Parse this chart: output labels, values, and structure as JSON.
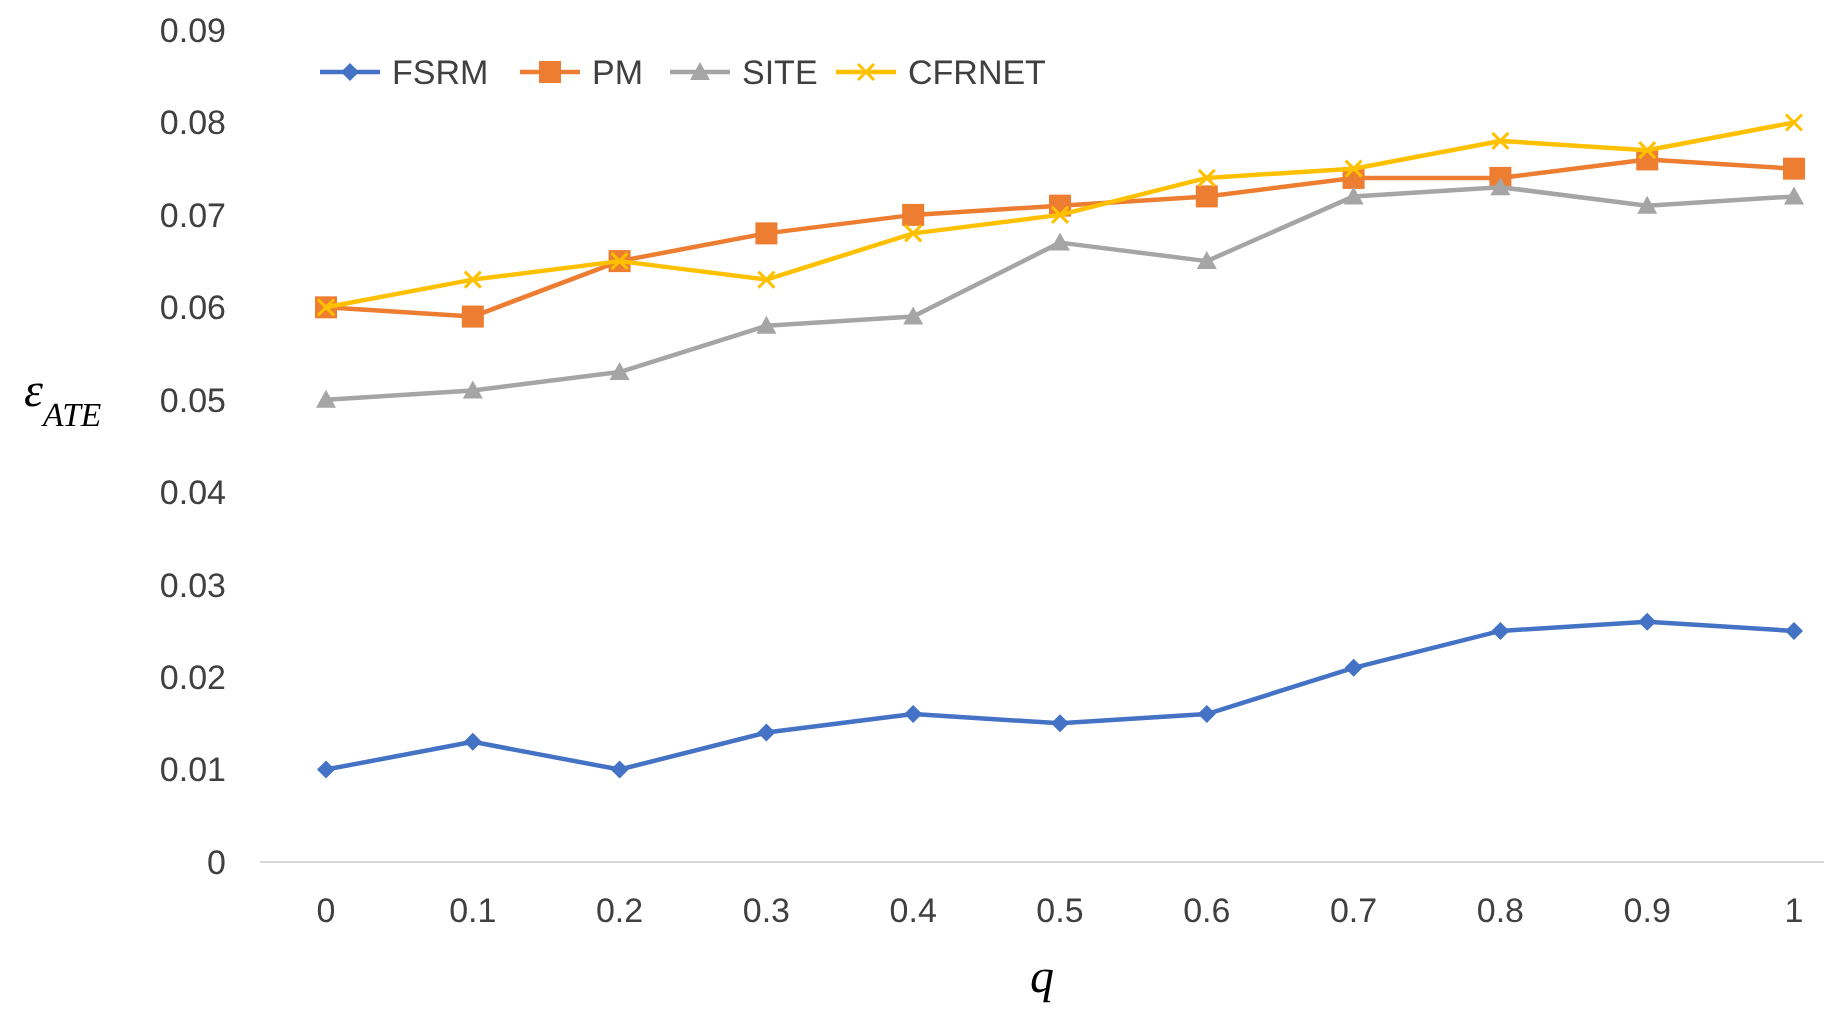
{
  "chart_data": {
    "type": "line",
    "xlabel": "q",
    "ylabel": "ε$_{ATE}$",
    "categories": [
      "0",
      "0.1",
      "0.2",
      "0.3",
      "0.4",
      "0.5",
      "0.6",
      "0.7",
      "0.8",
      "0.9",
      "1"
    ],
    "ylim": [
      0,
      0.09
    ],
    "yticks": [
      {
        "value": 0,
        "label": "0"
      },
      0.01,
      0.02,
      0.03,
      0.04,
      0.05,
      0.06,
      0.07,
      0.08,
      0.09
    ],
    "grid": false,
    "legend": "top left",
    "series": [
      {
        "name": "FSRM",
        "color": "#4472c4",
        "marker": "diamond",
        "values": [
          0.01,
          0.013,
          0.01,
          0.014,
          0.016,
          0.015,
          0.016,
          0.021,
          0.025,
          0.026,
          0.025
        ]
      },
      {
        "name": "PM",
        "color": "#ed7d31",
        "marker": "square",
        "values": [
          0.06,
          0.059,
          0.065,
          0.068,
          0.07,
          0.071,
          0.072,
          0.074,
          0.074,
          0.076,
          0.075
        ]
      },
      {
        "name": "SITE",
        "color": "#a5a5a5",
        "marker": "triangle",
        "values": [
          0.05,
          0.051,
          0.053,
          0.058,
          0.059,
          0.067,
          0.065,
          0.072,
          0.073,
          0.071,
          0.072
        ]
      },
      {
        "name": "CFRNET",
        "color": "#ffc000",
        "marker": "cross",
        "values": [
          0.06,
          0.063,
          0.065,
          0.063,
          0.068,
          0.07,
          0.074,
          0.075,
          0.078,
          0.077,
          0.08
        ]
      }
    ]
  }
}
